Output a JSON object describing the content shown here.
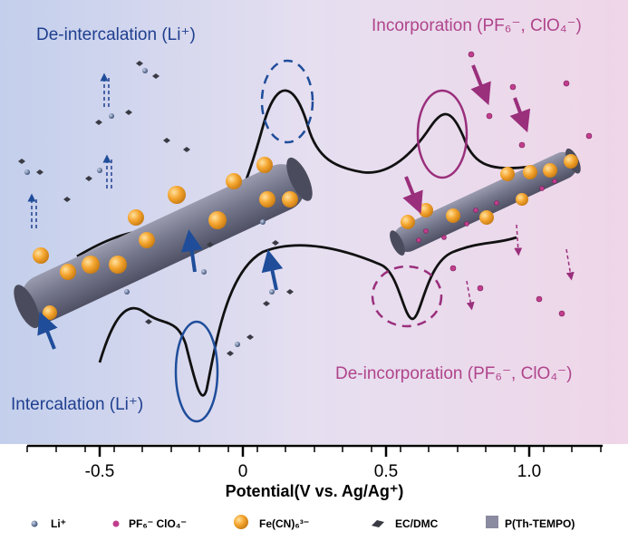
{
  "labels": {
    "deintercalation": "De-intercalation (Li⁺)",
    "intercalation": "Intercalation (Li⁺)",
    "incorporation": "Incorporation (PF₆⁻, ClO₄⁻)",
    "deincorporation": "De-incorporation (PF₆⁻, ClO₄⁻)"
  },
  "axis": {
    "title": "Potential(V vs. Ag/Ag⁺)",
    "ticks": [
      "-0.5",
      "0",
      "0.5",
      "1.0"
    ]
  },
  "legend": [
    {
      "label": "Li⁺",
      "icon": "li-ion-icon"
    },
    {
      "label": "PF₆⁻ ClO₄⁻",
      "icon": "anion-icon"
    },
    {
      "label": "Fe(CN)₆³⁻",
      "icon": "ferricyanide-icon"
    },
    {
      "label": "EC/DMC",
      "icon": "solvent-icon"
    },
    {
      "label": "P(Th-TEMPO)",
      "icon": "polymer-icon"
    }
  ],
  "colors": {
    "blue_text": "#1f3f8f",
    "pink_text": "#b0448c",
    "arrow_blue": "#1f4d9a",
    "arrow_pink": "#9a2f7c",
    "orange": "#f2a12a",
    "rod": "#6f7186"
  }
}
